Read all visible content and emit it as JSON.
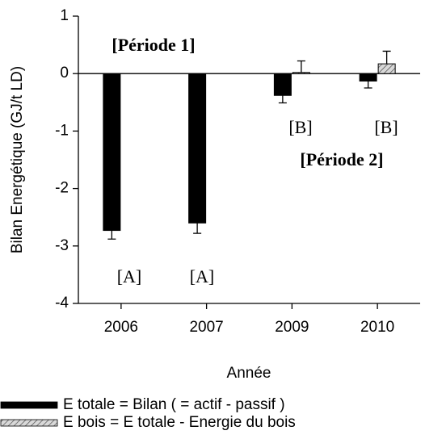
{
  "chart_data": {
    "type": "bar",
    "xlabel": "Année",
    "ylabel": "Bilan Energétique (GJ/t LD)",
    "categories": [
      "2006",
      "2007",
      "2009",
      "2010"
    ],
    "series": [
      {
        "name": "E totale = Bilan ( = actif - passif )",
        "color": "#000000",
        "values": [
          -2.73,
          -2.6,
          -0.38,
          -0.13
        ],
        "errors": [
          0.15,
          0.18,
          0.13,
          0.12
        ]
      },
      {
        "name": "E bois = E totale - Energie du bois",
        "color": "#bdbdbd",
        "hatch": true,
        "values": [
          null,
          null,
          0.02,
          0.17
        ],
        "errors": [
          null,
          null,
          0.2,
          0.22
        ]
      }
    ],
    "annotations": [
      "[Période 1]",
      "[A]",
      "[A]",
      "[B]",
      "[B]",
      "[Période 2]"
    ],
    "ylim": [
      -4,
      1
    ],
    "yticks": [
      -4,
      -3,
      -2,
      -1,
      0,
      1
    ],
    "legend": "bottom"
  }
}
